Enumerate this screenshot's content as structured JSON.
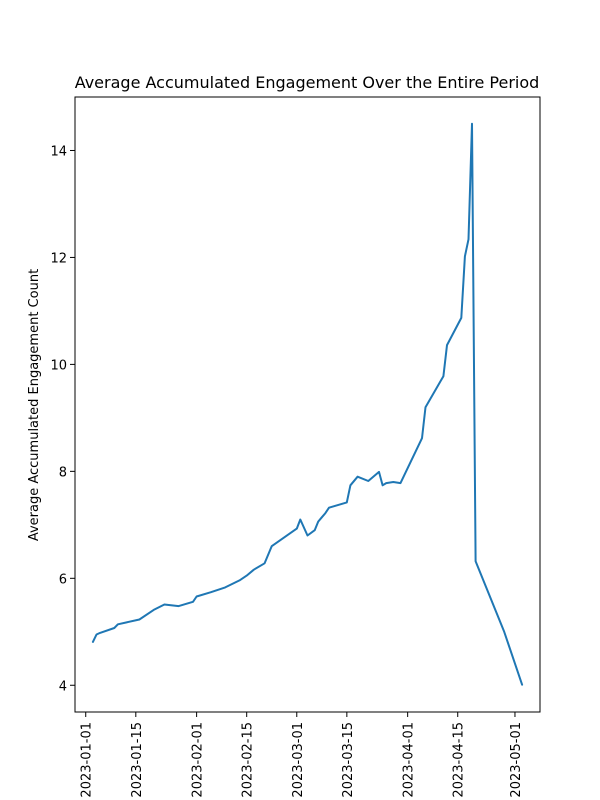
{
  "chart_data": {
    "type": "line",
    "title": "Average Accumulated Engagement Over the Entire Period",
    "xlabel": "",
    "ylabel": "Average Accumulated Engagement Count",
    "x_is_date": true,
    "xlim": [
      "2022-12-29",
      "2023-05-08"
    ],
    "ylim": [
      3.5,
      15.0
    ],
    "x_ticks": [
      "2023-01-01",
      "2023-01-15",
      "2023-02-01",
      "2023-02-15",
      "2023-03-01",
      "2023-03-15",
      "2023-04-01",
      "2023-04-15",
      "2023-05-01"
    ],
    "y_ticks": [
      4,
      6,
      8,
      10,
      12,
      14
    ],
    "grid": false,
    "line_color": "#1f77b4",
    "series": [
      {
        "x": [
          "2023-01-03",
          "2023-01-04",
          "2023-01-05",
          "2023-01-09",
          "2023-01-10",
          "2023-01-16",
          "2023-01-20",
          "2023-01-23",
          "2023-01-27",
          "2023-01-31",
          "2023-02-01",
          "2023-02-05",
          "2023-02-09",
          "2023-02-13",
          "2023-02-15",
          "2023-02-17",
          "2023-02-20",
          "2023-02-22",
          "2023-03-01",
          "2023-03-02",
          "2023-03-04",
          "2023-03-06",
          "2023-03-07",
          "2023-03-08",
          "2023-03-09",
          "2023-03-10",
          "2023-03-15",
          "2023-03-16",
          "2023-03-18",
          "2023-03-21",
          "2023-03-24",
          "2023-03-25",
          "2023-03-26",
          "2023-03-28",
          "2023-03-30",
          "2023-04-05",
          "2023-04-06",
          "2023-04-11",
          "2023-04-12",
          "2023-04-16",
          "2023-04-17",
          "2023-04-18",
          "2023-04-19",
          "2023-04-20",
          "2023-04-28",
          "2023-05-03"
        ],
        "values": [
          4.81,
          4.95,
          4.98,
          5.07,
          5.14,
          5.23,
          5.41,
          5.51,
          5.48,
          5.56,
          5.66,
          5.74,
          5.83,
          5.96,
          6.05,
          6.16,
          6.28,
          6.6,
          6.93,
          7.1,
          6.8,
          6.9,
          7.06,
          7.14,
          7.22,
          7.32,
          7.42,
          7.74,
          7.9,
          7.82,
          7.99,
          7.74,
          7.78,
          7.8,
          7.78,
          8.62,
          9.2,
          9.78,
          10.36,
          10.87,
          12.02,
          12.34,
          14.5,
          6.32,
          5.0,
          4.01
        ]
      }
    ]
  }
}
